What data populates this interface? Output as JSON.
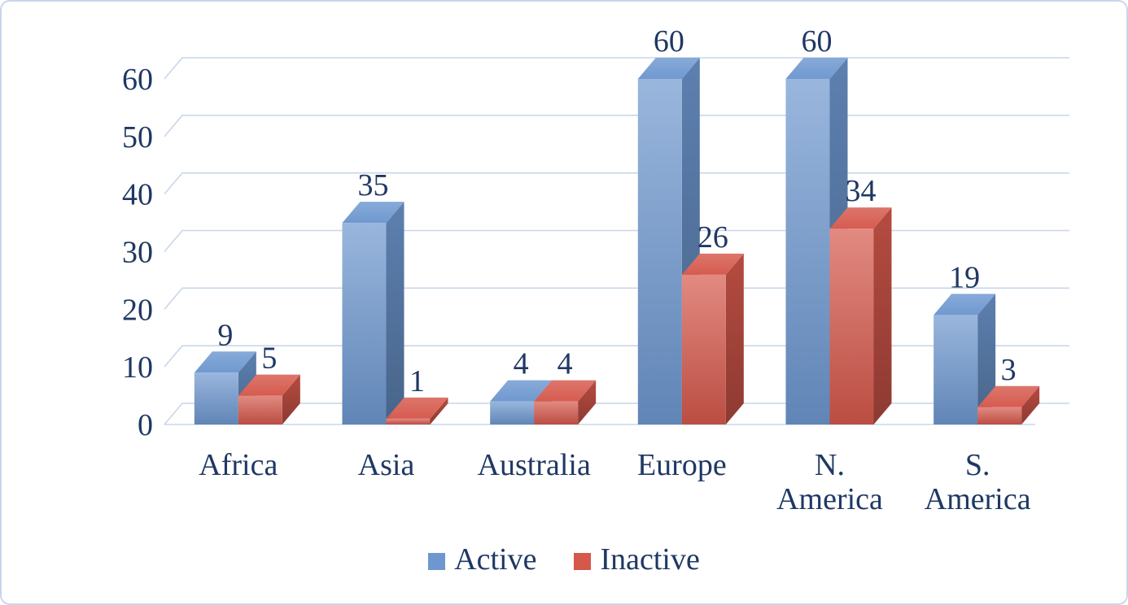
{
  "chart_data": {
    "type": "bar",
    "subtype": "3d-clustered-column",
    "title": "",
    "categories": [
      "Africa",
      "Asia",
      "Australia",
      "Europe",
      "N. America",
      "S. America"
    ],
    "categories_display": [
      [
        "Africa"
      ],
      [
        "Asia"
      ],
      [
        "Australia"
      ],
      [
        "Europe"
      ],
      [
        "N.",
        "America"
      ],
      [
        "S.",
        "America"
      ]
    ],
    "series": [
      {
        "name": "Active",
        "color": "#6d97cf",
        "values": [
          9,
          35,
          4,
          60,
          60,
          19
        ]
      },
      {
        "name": "Inactive",
        "color": "#d5584b",
        "values": [
          5,
          1,
          4,
          26,
          34,
          3
        ]
      }
    ],
    "data_labels": true,
    "ylim": [
      0,
      60
    ],
    "yticks": [
      0,
      10,
      20,
      30,
      40,
      50,
      60
    ],
    "grid": true,
    "legend_position": "bottom",
    "text_color": "#1f3864",
    "gridline_color": "#c9d6ea",
    "frame_border_color": "#c9d6ea"
  }
}
